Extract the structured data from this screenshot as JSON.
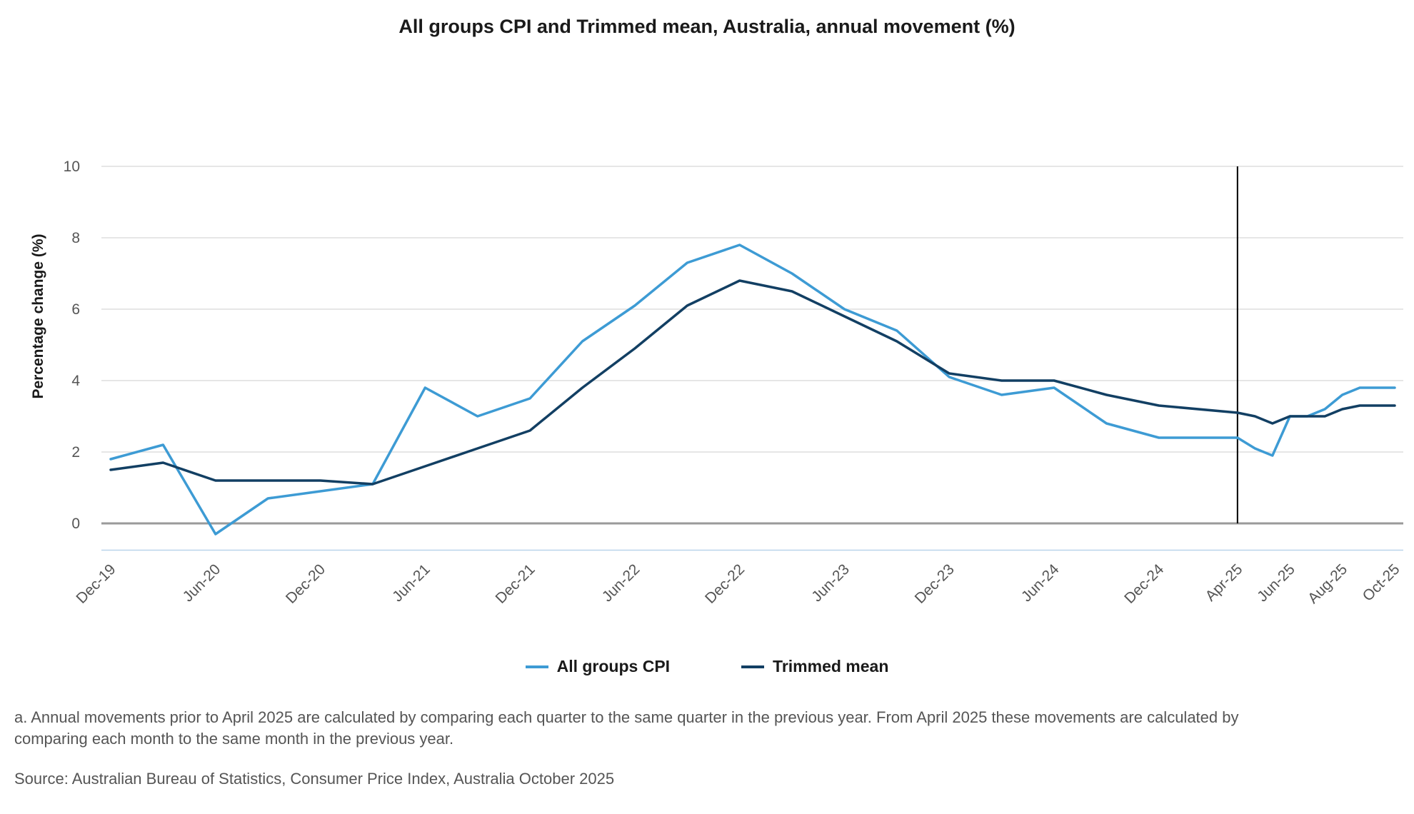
{
  "chart_data": {
    "type": "line",
    "title": "All groups CPI and Trimmed mean, Australia, annual movement (%)",
    "ylabel": "Percentage change (%)",
    "xlabel": "",
    "ylim": [
      -0.75,
      10
    ],
    "yticks": [
      0,
      2,
      4,
      6,
      8,
      10
    ],
    "grid": true,
    "legend_position": "bottom",
    "x_labels": [
      "Dec-19",
      "Jun-20",
      "Dec-20",
      "Jun-21",
      "Dec-21",
      "Jun-22",
      "Dec-22",
      "Jun-23",
      "Dec-23",
      "Jun-24",
      "Dec-24",
      "Apr-25",
      "Jun-25",
      "Aug-25",
      "Oct-25"
    ],
    "x_label_index": [
      0,
      2,
      4,
      6,
      8,
      10,
      12,
      14,
      16,
      18,
      20,
      21.5,
      22.5,
      23.5,
      24.5
    ],
    "x_index": [
      0,
      1,
      2,
      3,
      4,
      5,
      6,
      7,
      8,
      9,
      10,
      11,
      12,
      13,
      14,
      15,
      16,
      17,
      18,
      19,
      20,
      21.5,
      21.833,
      22.167,
      22.5,
      22.833,
      23.167,
      23.5,
      23.833,
      24.167,
      24.5
    ],
    "x_max_index": 24.5,
    "divider_label": "Apr-25",
    "divider_index": 21.5,
    "series": [
      {
        "name": "All groups CPI",
        "color": "#3d9bd4",
        "values": [
          1.8,
          2.2,
          -0.3,
          0.7,
          0.9,
          1.1,
          3.8,
          3.0,
          3.5,
          5.1,
          6.1,
          7.3,
          7.8,
          7.0,
          6.0,
          5.4,
          4.1,
          3.6,
          3.8,
          2.8,
          2.4,
          2.4,
          2.1,
          1.9,
          3.0,
          3.0,
          3.2,
          3.6,
          3.8,
          3.8,
          3.8
        ]
      },
      {
        "name": "Trimmed mean",
        "color": "#123f63",
        "values": [
          1.5,
          1.7,
          1.2,
          1.2,
          1.2,
          1.1,
          1.6,
          2.1,
          2.6,
          3.8,
          4.9,
          6.1,
          6.8,
          6.5,
          5.8,
          5.1,
          4.2,
          4.0,
          4.0,
          3.6,
          3.3,
          3.1,
          3.0,
          2.8,
          3.0,
          3.0,
          3.0,
          3.2,
          3.3,
          3.3,
          3.3
        ]
      }
    ]
  },
  "footnote": "a. Annual movements prior to April 2025 are calculated by comparing each quarter to the same quarter in the previous year.  From April 2025 these movements are calculated by comparing each month to the same month in the previous year.",
  "source": "Source: Australian Bureau of Statistics, Consumer Price Index, Australia October 2025",
  "colors": {
    "cpi": "#3d9bd4",
    "trimmed": "#123f63",
    "grid": "#dddddd",
    "zero": "#9a9a9a",
    "divider": "#000000"
  }
}
